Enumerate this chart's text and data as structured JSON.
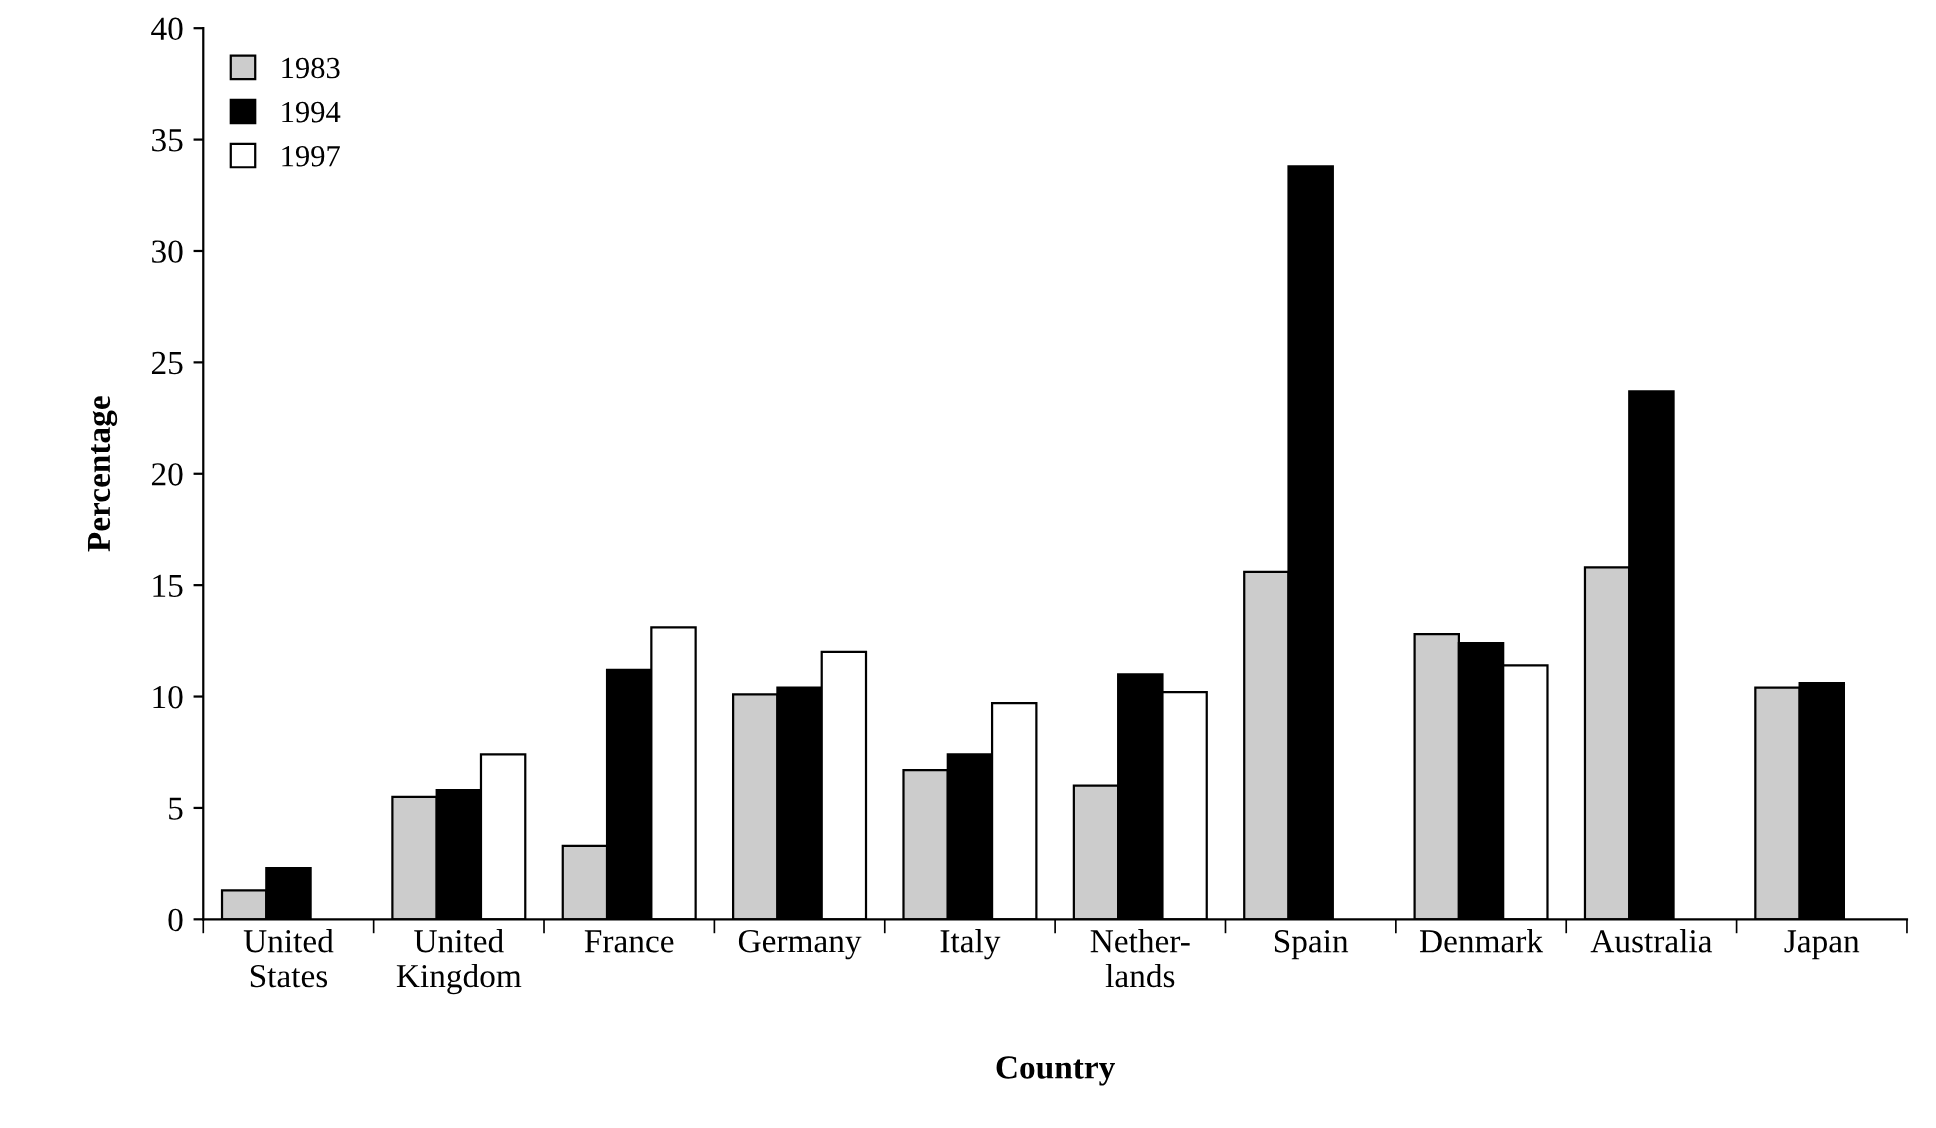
{
  "chart_data": {
    "type": "bar",
    "xlabel": "Country",
    "ylabel": "Percentage",
    "categories": [
      "United\nStates",
      "United\nKingdom",
      "France",
      "Germany",
      "Italy",
      "Nether-\nlands",
      "Spain",
      "Denmark",
      "Australia",
      "Japan"
    ],
    "series": [
      {
        "name": "1983",
        "color": "#cccccc",
        "values": [
          1.3,
          5.5,
          3.3,
          10.1,
          6.7,
          6.0,
          15.6,
          12.8,
          15.8,
          10.4
        ]
      },
      {
        "name": "1994",
        "color": "#000000",
        "values": [
          2.3,
          5.8,
          11.2,
          10.4,
          7.4,
          11.0,
          33.8,
          12.4,
          23.7,
          10.6
        ]
      },
      {
        "name": "1997",
        "color": "#ffffff",
        "values": [
          null,
          7.4,
          13.1,
          12.0,
          9.7,
          10.2,
          null,
          11.4,
          null,
          null
        ]
      }
    ],
    "ylim": [
      0,
      40
    ],
    "yticks": [
      0,
      5,
      10,
      15,
      20,
      25,
      30,
      35,
      40
    ],
    "grid": false,
    "legend": "top left"
  }
}
